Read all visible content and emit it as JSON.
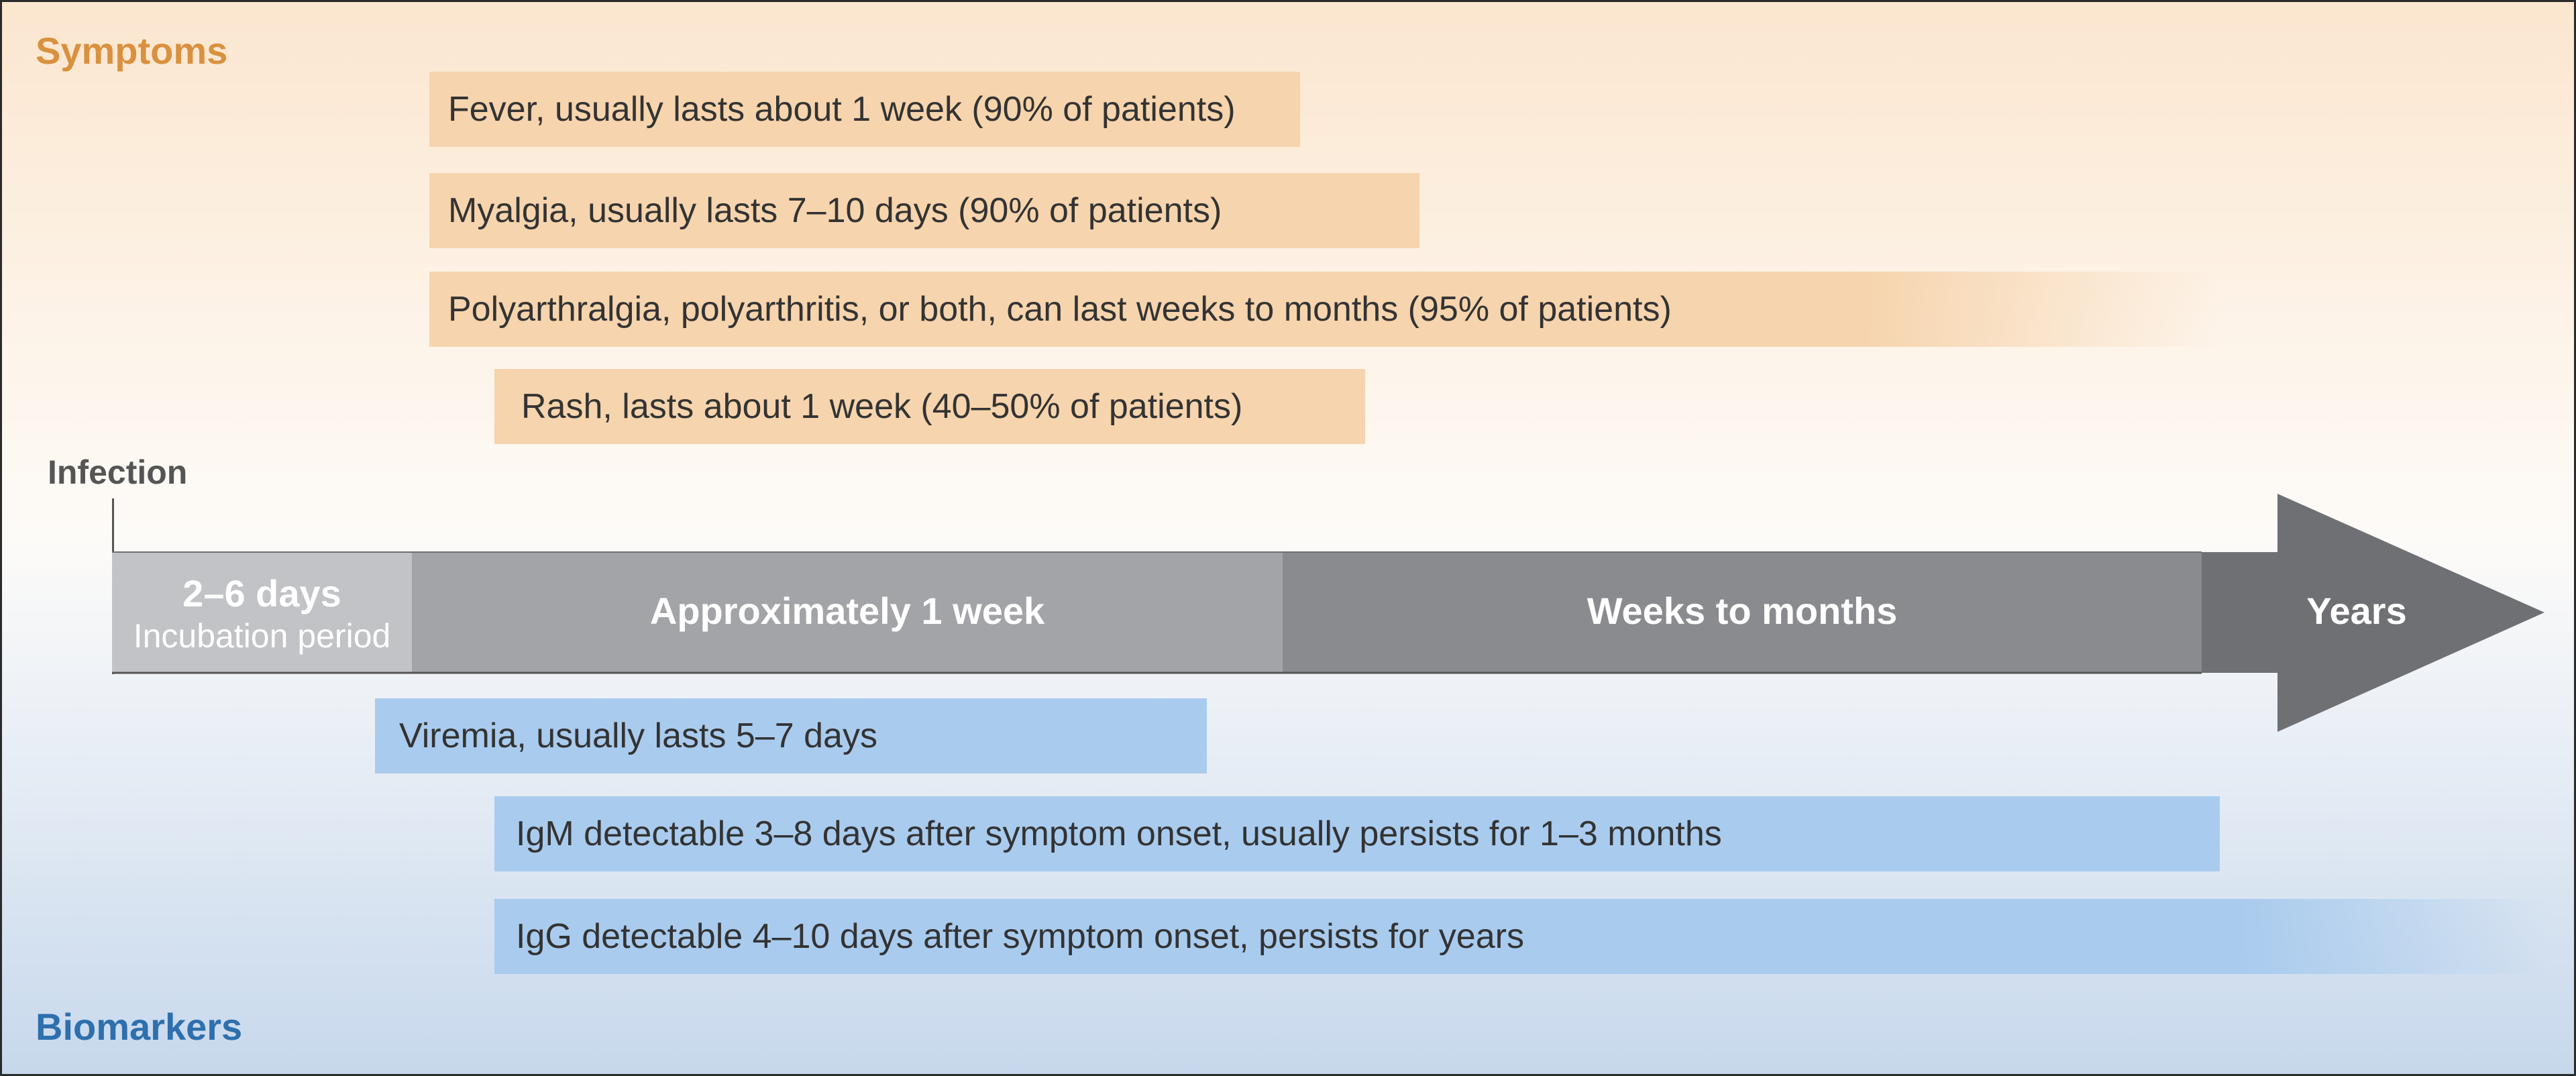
{
  "labels": {
    "symptoms": "Symptoms",
    "biomarkers": "Biomarkers",
    "infection": "Infection"
  },
  "symptoms": [
    "Fever, usually lasts about 1 week (90% of patients)",
    "Myalgia, usually lasts 7–10 days (90% of patients)",
    "Polyarthralgia, polyarthritis, or both, can last weeks to months (95% of patients)",
    "Rash, lasts about 1 week (40–50% of patients)"
  ],
  "timeline": {
    "incubation_days": "2–6 days",
    "incubation_label": "Incubation period",
    "week": "Approximately 1 week",
    "weeks_months": "Weeks to months",
    "years": "Years"
  },
  "biomarkers": [
    "Viremia, usually lasts 5–7 days",
    "IgM detectable 3–8 days after symptom onset, usually persists for 1–3 months",
    "IgG detectable 4–10 days after symptom onset, persists for years"
  ],
  "colors": {
    "symptom_bar": "#f6d4ad",
    "biomarker_bar": "#a9cbee",
    "symptoms_title": "#d9913f",
    "biomarkers_title": "#2e6fad",
    "seg_incubation": "#c2c3c6",
    "seg_week": "#a3a4a8",
    "seg_weeks_months": "#8a8b8f",
    "seg_years": "#6f7074"
  }
}
